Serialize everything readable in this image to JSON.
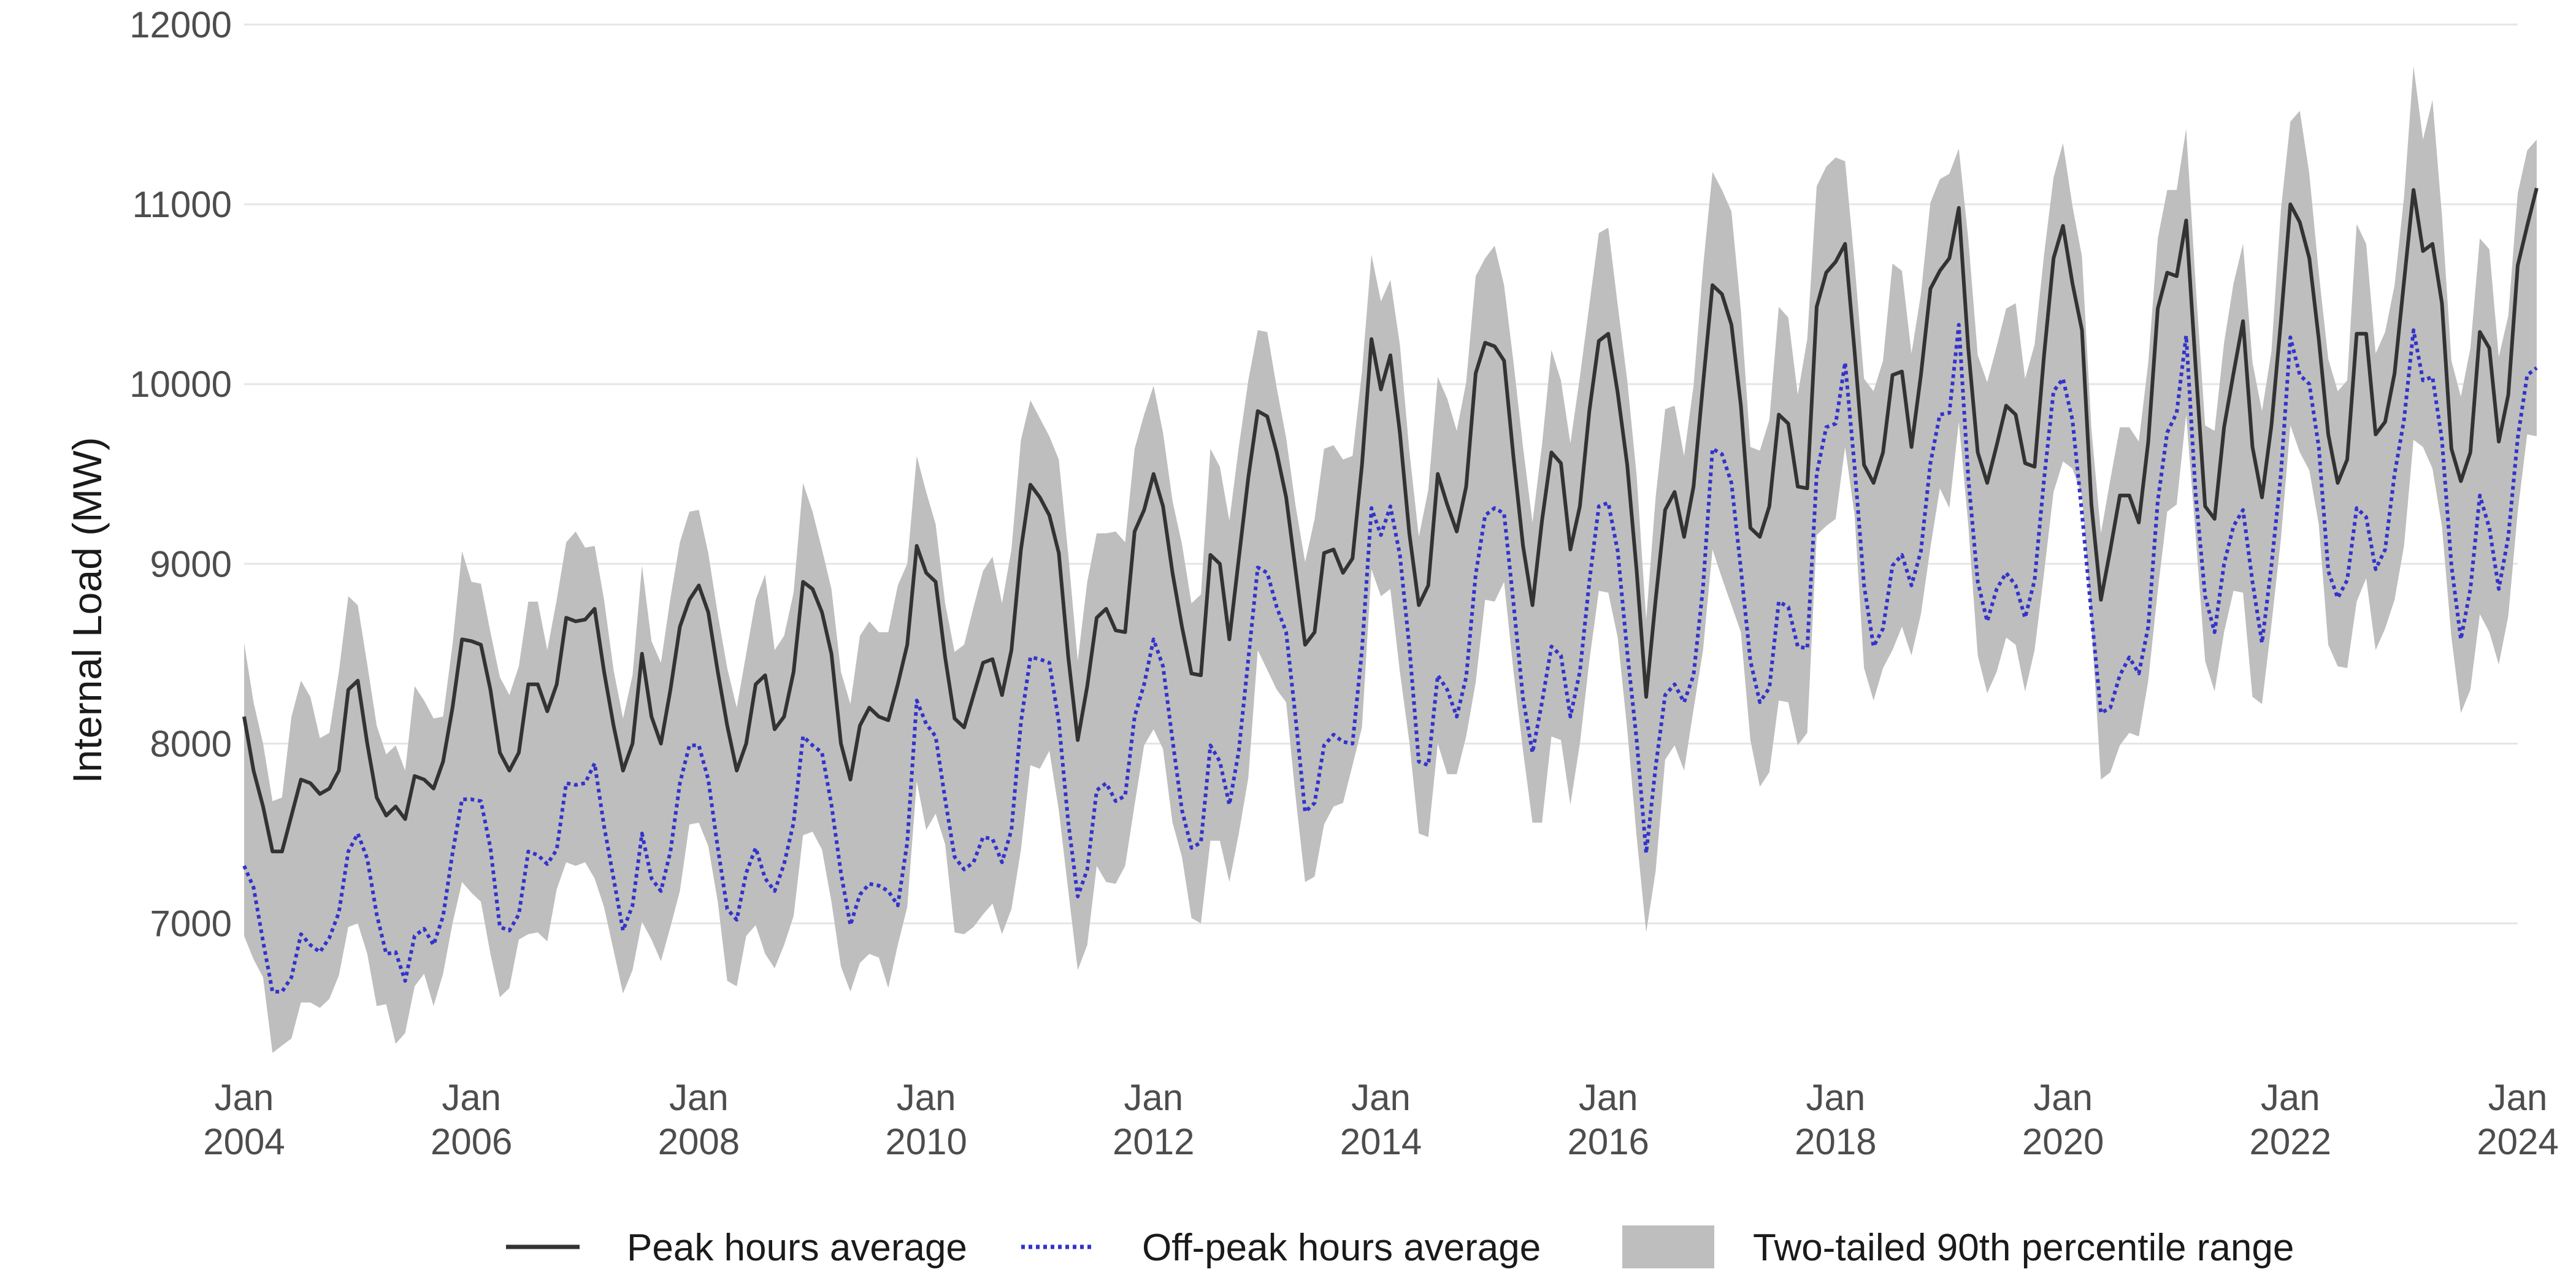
{
  "chart_data": {
    "type": "line",
    "title": "",
    "xlabel": "",
    "ylabel": "Internal Load (MW)",
    "x_start": "2004-01",
    "x_end": "2024-01",
    "x_frequency": "monthly",
    "ylim": [
      6200,
      12000
    ],
    "y_ticks": [
      7000,
      8000,
      9000,
      10000,
      11000,
      12000
    ],
    "x_ticks": [
      {
        "date": "2004-01",
        "line1": "Jan",
        "line2": "2004"
      },
      {
        "date": "2006-01",
        "line1": "Jan",
        "line2": "2006"
      },
      {
        "date": "2008-01",
        "line1": "Jan",
        "line2": "2008"
      },
      {
        "date": "2010-01",
        "line1": "Jan",
        "line2": "2010"
      },
      {
        "date": "2012-01",
        "line1": "Jan",
        "line2": "2012"
      },
      {
        "date": "2014-01",
        "line1": "Jan",
        "line2": "2014"
      },
      {
        "date": "2016-01",
        "line1": "Jan",
        "line2": "2016"
      },
      {
        "date": "2018-01",
        "line1": "Jan",
        "line2": "2018"
      },
      {
        "date": "2020-01",
        "line1": "Jan",
        "line2": "2020"
      },
      {
        "date": "2022-01",
        "line1": "Jan",
        "line2": "2022"
      },
      {
        "date": "2024-01",
        "line1": "Jan",
        "line2": "2024"
      }
    ],
    "grid": "horizontal",
    "legend_position": "bottom",
    "colors": {
      "peak": "#333333",
      "offpeak": "#3333cc",
      "band": "#bebebe",
      "grid": "#e5e5e5"
    },
    "series": [
      {
        "name": "Peak hours average",
        "style": "solid",
        "values": [
          8150,
          7850,
          7650,
          7400,
          7400,
          7600,
          7800,
          7780,
          7720,
          7750,
          7850,
          8300,
          8350,
          8000,
          7700,
          7600,
          7650,
          7580,
          7820,
          7800,
          7750,
          7900,
          8200,
          8580,
          8570,
          8550,
          8300,
          7950,
          7850,
          7950,
          8330,
          8330,
          8180,
          8330,
          8700,
          8680,
          8690,
          8750,
          8400,
          8100,
          7850,
          8000,
          8500,
          8150,
          8000,
          8300,
          8650,
          8800,
          8880,
          8730,
          8400,
          8100,
          7850,
          8000,
          8330,
          8380,
          8080,
          8150,
          8400,
          8900,
          8860,
          8730,
          8500,
          8000,
          7800,
          8100,
          8200,
          8150,
          8130,
          8330,
          8550,
          9100,
          8950,
          8900,
          8480,
          8140,
          8090,
          8270,
          8450,
          8470,
          8270,
          8520,
          9080,
          9440,
          9370,
          9270,
          9060,
          8480,
          8020,
          8320,
          8700,
          8750,
          8630,
          8620,
          9180,
          9300,
          9500,
          9320,
          8950,
          8650,
          8390,
          8380,
          9050,
          9000,
          8580,
          9030,
          9480,
          9850,
          9820,
          9620,
          9370,
          8960,
          8550,
          8620,
          9060,
          9080,
          8950,
          9030,
          9550,
          10250,
          9970,
          10160,
          9730,
          9170,
          8770,
          8880,
          9500,
          9330,
          9180,
          9430,
          10060,
          10230,
          10210,
          10130,
          9590,
          9100,
          8770,
          9240,
          9620,
          9560,
          9080,
          9320,
          9850,
          10240,
          10280,
          9950,
          9550,
          8960,
          8260,
          8800,
          9300,
          9400,
          9150,
          9430,
          10000,
          10550,
          10500,
          10330,
          9880,
          9200,
          9150,
          9320,
          9830,
          9780,
          9430,
          9420,
          10430,
          10620,
          10680,
          10780,
          10180,
          9550,
          9450,
          9620,
          10050,
          10070,
          9650,
          10050,
          10530,
          10630,
          10700,
          10980,
          10200,
          9620,
          9450,
          9660,
          9880,
          9830,
          9560,
          9540,
          10160,
          10700,
          10880,
          10560,
          10300,
          9330,
          8800,
          9080,
          9380,
          9380,
          9230,
          9680,
          10420,
          10620,
          10600,
          10910,
          10100,
          9320,
          9250,
          9760,
          10060,
          10350,
          9650,
          9370,
          9770,
          10350,
          11000,
          10900,
          10700,
          10250,
          9720,
          9450,
          9580,
          10280,
          10280,
          9720,
          9790,
          10060,
          10570,
          11080,
          10740,
          10780,
          10450,
          9640,
          9460,
          9620,
          10290,
          10200,
          9680,
          9940,
          10660,
          10880,
          11090
        ]
      },
      {
        "name": "Off-peak hours average",
        "style": "dotted",
        "values": [
          7320,
          7200,
          6900,
          6620,
          6620,
          6700,
          6940,
          6880,
          6840,
          6920,
          7060,
          7400,
          7500,
          7360,
          7050,
          6830,
          6840,
          6680,
          6930,
          6970,
          6880,
          7040,
          7390,
          7690,
          7690,
          7680,
          7420,
          6980,
          6960,
          7050,
          7400,
          7380,
          7330,
          7410,
          7780,
          7770,
          7780,
          7890,
          7540,
          7250,
          6960,
          7100,
          7500,
          7250,
          7180,
          7400,
          7780,
          7990,
          7990,
          7800,
          7420,
          7080,
          7020,
          7280,
          7420,
          7250,
          7180,
          7330,
          7560,
          8040,
          7990,
          7950,
          7660,
          7280,
          6990,
          7160,
          7220,
          7210,
          7180,
          7100,
          7450,
          8240,
          8110,
          8040,
          7690,
          7370,
          7300,
          7340,
          7480,
          7470,
          7340,
          7520,
          8120,
          8480,
          8470,
          8450,
          8120,
          7560,
          7150,
          7300,
          7740,
          7780,
          7680,
          7710,
          8150,
          8330,
          8580,
          8430,
          8020,
          7630,
          7420,
          7450,
          7990,
          7900,
          7660,
          7960,
          8470,
          8980,
          8950,
          8760,
          8620,
          8140,
          7620,
          7670,
          7990,
          8050,
          8010,
          8000,
          8520,
          9310,
          9160,
          9320,
          9050,
          8540,
          7900,
          7880,
          8380,
          8300,
          8150,
          8370,
          8940,
          9270,
          9310,
          9280,
          8780,
          8250,
          7950,
          8230,
          8540,
          8490,
          8150,
          8400,
          8900,
          9320,
          9340,
          9070,
          8510,
          8020,
          7390,
          7870,
          8270,
          8330,
          8230,
          8380,
          8870,
          9640,
          9610,
          9450,
          8970,
          8460,
          8230,
          8310,
          8790,
          8760,
          8540,
          8530,
          9500,
          9760,
          9780,
          10120,
          9540,
          8880,
          8540,
          8640,
          8990,
          9050,
          8880,
          9070,
          9560,
          9830,
          9840,
          10330,
          9480,
          8900,
          8680,
          8860,
          8950,
          8880,
          8700,
          8910,
          9470,
          9960,
          10030,
          9800,
          9280,
          8720,
          8170,
          8200,
          8380,
          8480,
          8390,
          8650,
          9350,
          9730,
          9840,
          10270,
          9390,
          8820,
          8620,
          9000,
          9210,
          9300,
          8900,
          8560,
          8990,
          9500,
          10260,
          10050,
          10000,
          9650,
          8960,
          8810,
          8910,
          9310,
          9260,
          8970,
          9080,
          9500,
          9800,
          10300,
          10020,
          10040,
          9690,
          8990,
          8580,
          8860,
          9380,
          9200,
          8860,
          9150,
          9700,
          10050,
          10090
        ]
      }
    ],
    "band": {
      "name": "Two-tailed 90th percentile range",
      "upper": [
        8560,
        8230,
        8000,
        7680,
        7700,
        8150,
        8350,
        8260,
        8030,
        8060,
        8400,
        8820,
        8770,
        8440,
        8100,
        7940,
        7990,
        7850,
        8320,
        8240,
        8140,
        8150,
        8550,
        9070,
        8900,
        8890,
        8620,
        8370,
        8270,
        8430,
        8790,
        8790,
        8520,
        8800,
        9120,
        9180,
        9090,
        9100,
        8800,
        8410,
        8140,
        8380,
        8990,
        8570,
        8450,
        8810,
        9120,
        9290,
        9300,
        9060,
        8720,
        8420,
        8200,
        8500,
        8800,
        8940,
        8520,
        8600,
        8840,
        9450,
        9290,
        9080,
        8860,
        8400,
        8220,
        8600,
        8680,
        8620,
        8620,
        8880,
        9000,
        9600,
        9400,
        9220,
        8780,
        8510,
        8550,
        8760,
        8960,
        9040,
        8780,
        9080,
        9690,
        9910,
        9810,
        9710,
        9580,
        9050,
        8460,
        8900,
        9170,
        9170,
        9180,
        9120,
        9640,
        9830,
        9990,
        9730,
        9350,
        9110,
        8780,
        8830,
        9640,
        9540,
        9240,
        9650,
        10020,
        10300,
        10290,
        9980,
        9700,
        9320,
        9010,
        9250,
        9640,
        9660,
        9580,
        9600,
        10070,
        10720,
        10460,
        10580,
        10220,
        9630,
        9150,
        9410,
        10040,
        9920,
        9740,
        10010,
        10600,
        10700,
        10770,
        10550,
        10120,
        9650,
        9230,
        9660,
        10190,
        10020,
        9670,
        10040,
        10440,
        10840,
        10870,
        10440,
        10020,
        9490,
        8690,
        9370,
        9860,
        9880,
        9600,
        9990,
        10650,
        11180,
        11080,
        10960,
        10410,
        9650,
        9630,
        9800,
        10430,
        10370,
        9940,
        10250,
        11100,
        11210,
        11260,
        11240,
        10670,
        10030,
        9960,
        10130,
        10670,
        10630,
        10170,
        10500,
        11010,
        11140,
        11170,
        11310,
        10810,
        10160,
        10010,
        10210,
        10420,
        10450,
        10030,
        10220,
        10720,
        11150,
        11340,
        10990,
        10710,
        9750,
        9170,
        9470,
        9760,
        9760,
        9680,
        10120,
        10810,
        11080,
        11080,
        11420,
        10560,
        9770,
        9740,
        10230,
        10560,
        10780,
        10120,
        9850,
        10180,
        10970,
        11460,
        11520,
        11170,
        10620,
        10140,
        9960,
        10020,
        10890,
        10780,
        10170,
        10290,
        10550,
        11040,
        11770,
        11360,
        11580,
        10940,
        10130,
        9930,
        10200,
        10810,
        10750,
        10150,
        10380,
        11060,
        11300,
        11360
      ],
      "lower": [
        6930,
        6800,
        6700,
        6280,
        6320,
        6360,
        6560,
        6560,
        6530,
        6580,
        6710,
        6980,
        7000,
        6830,
        6540,
        6550,
        6330,
        6390,
        6650,
        6720,
        6540,
        6720,
        7000,
        7230,
        7170,
        7120,
        6830,
        6590,
        6640,
        6910,
        6940,
        6950,
        6900,
        7190,
        7340,
        7320,
        7340,
        7250,
        7090,
        6850,
        6610,
        6740,
        7010,
        6910,
        6790,
        6980,
        7180,
        7550,
        7560,
        7430,
        7120,
        6680,
        6650,
        6930,
        6990,
        6830,
        6750,
        6880,
        7040,
        7490,
        7510,
        7410,
        7120,
        6760,
        6620,
        6780,
        6830,
        6810,
        6640,
        6880,
        7090,
        7790,
        7520,
        7610,
        7440,
        6950,
        6940,
        6980,
        7050,
        7110,
        6940,
        7080,
        7410,
        7880,
        7860,
        7960,
        7630,
        7180,
        6740,
        6880,
        7320,
        7230,
        7220,
        7320,
        7660,
        7990,
        8080,
        7970,
        7560,
        7370,
        7030,
        7000,
        7460,
        7460,
        7230,
        7500,
        7810,
        8520,
        8410,
        8300,
        8230,
        7700,
        7230,
        7260,
        7550,
        7650,
        7670,
        7880,
        8090,
        8970,
        8820,
        8860,
        8400,
        8010,
        7500,
        7480,
        8000,
        7830,
        7830,
        8040,
        8340,
        8800,
        8790,
        8900,
        8400,
        7960,
        7560,
        7560,
        8040,
        8020,
        7660,
        8000,
        8460,
        8850,
        8840,
        8590,
        8080,
        7480,
        6950,
        7290,
        7910,
        7990,
        7850,
        8190,
        8520,
        9080,
        8920,
        8770,
        8620,
        8020,
        7760,
        7840,
        8240,
        8230,
        7990,
        8060,
        9160,
        9210,
        9250,
        9650,
        9270,
        8420,
        8240,
        8420,
        8520,
        8650,
        8490,
        8720,
        9090,
        9420,
        9310,
        9790,
        9220,
        8490,
        8280,
        8400,
        8590,
        8550,
        8290,
        8520,
        8950,
        9400,
        9570,
        9530,
        9380,
        8670,
        7800,
        7840,
        7990,
        8060,
        8040,
        8350,
        8850,
        9290,
        9330,
        9830,
        9160,
        8460,
        8290,
        8620,
        8850,
        8840,
        8260,
        8220,
        8660,
        9140,
        9770,
        9620,
        9520,
        9220,
        8550,
        8430,
        8420,
        8790,
        8920,
        8520,
        8640,
        8800,
        9100,
        9690,
        9650,
        9530,
        9210,
        8590,
        8170,
        8300,
        8720,
        8620,
        8440,
        8710,
        9290,
        9720,
        9710
      ]
    }
  },
  "legend": {
    "items": [
      {
        "label": "Peak hours average"
      },
      {
        "label": "Off-peak hours average"
      },
      {
        "label": "Two-tailed 90th percentile range"
      }
    ]
  }
}
